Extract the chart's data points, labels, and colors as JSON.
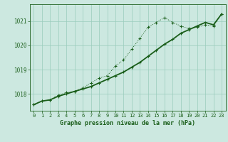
{
  "title": "Graphe pression niveau de la mer (hPa)",
  "bg_color": "#cce8e0",
  "line_color": "#1a5e1a",
  "grid_color": "#99ccbb",
  "x_ticks": [
    0,
    1,
    2,
    3,
    4,
    5,
    6,
    7,
    8,
    9,
    10,
    11,
    12,
    13,
    14,
    15,
    16,
    17,
    18,
    19,
    20,
    21,
    22,
    23
  ],
  "ylim": [
    1017.3,
    1021.7
  ],
  "yticks": [
    1018,
    1019,
    1020,
    1021
  ],
  "series1_dotted": [
    1017.55,
    1017.7,
    1017.75,
    1017.95,
    1018.05,
    1018.1,
    1018.25,
    1018.45,
    1018.65,
    1018.75,
    1019.15,
    1019.4,
    1019.85,
    1020.3,
    1020.75,
    1020.95,
    1021.15,
    1020.95,
    1020.8,
    1020.7,
    1020.75,
    1020.85,
    1020.8,
    1021.3
  ],
  "series2_solid": [
    1017.55,
    1017.7,
    1017.75,
    1017.9,
    1018.0,
    1018.1,
    1018.2,
    1018.3,
    1018.45,
    1018.6,
    1018.75,
    1018.9,
    1019.1,
    1019.3,
    1019.55,
    1019.8,
    1020.05,
    1020.25,
    1020.5,
    1020.65,
    1020.8,
    1020.95,
    1020.85,
    1021.3
  ]
}
